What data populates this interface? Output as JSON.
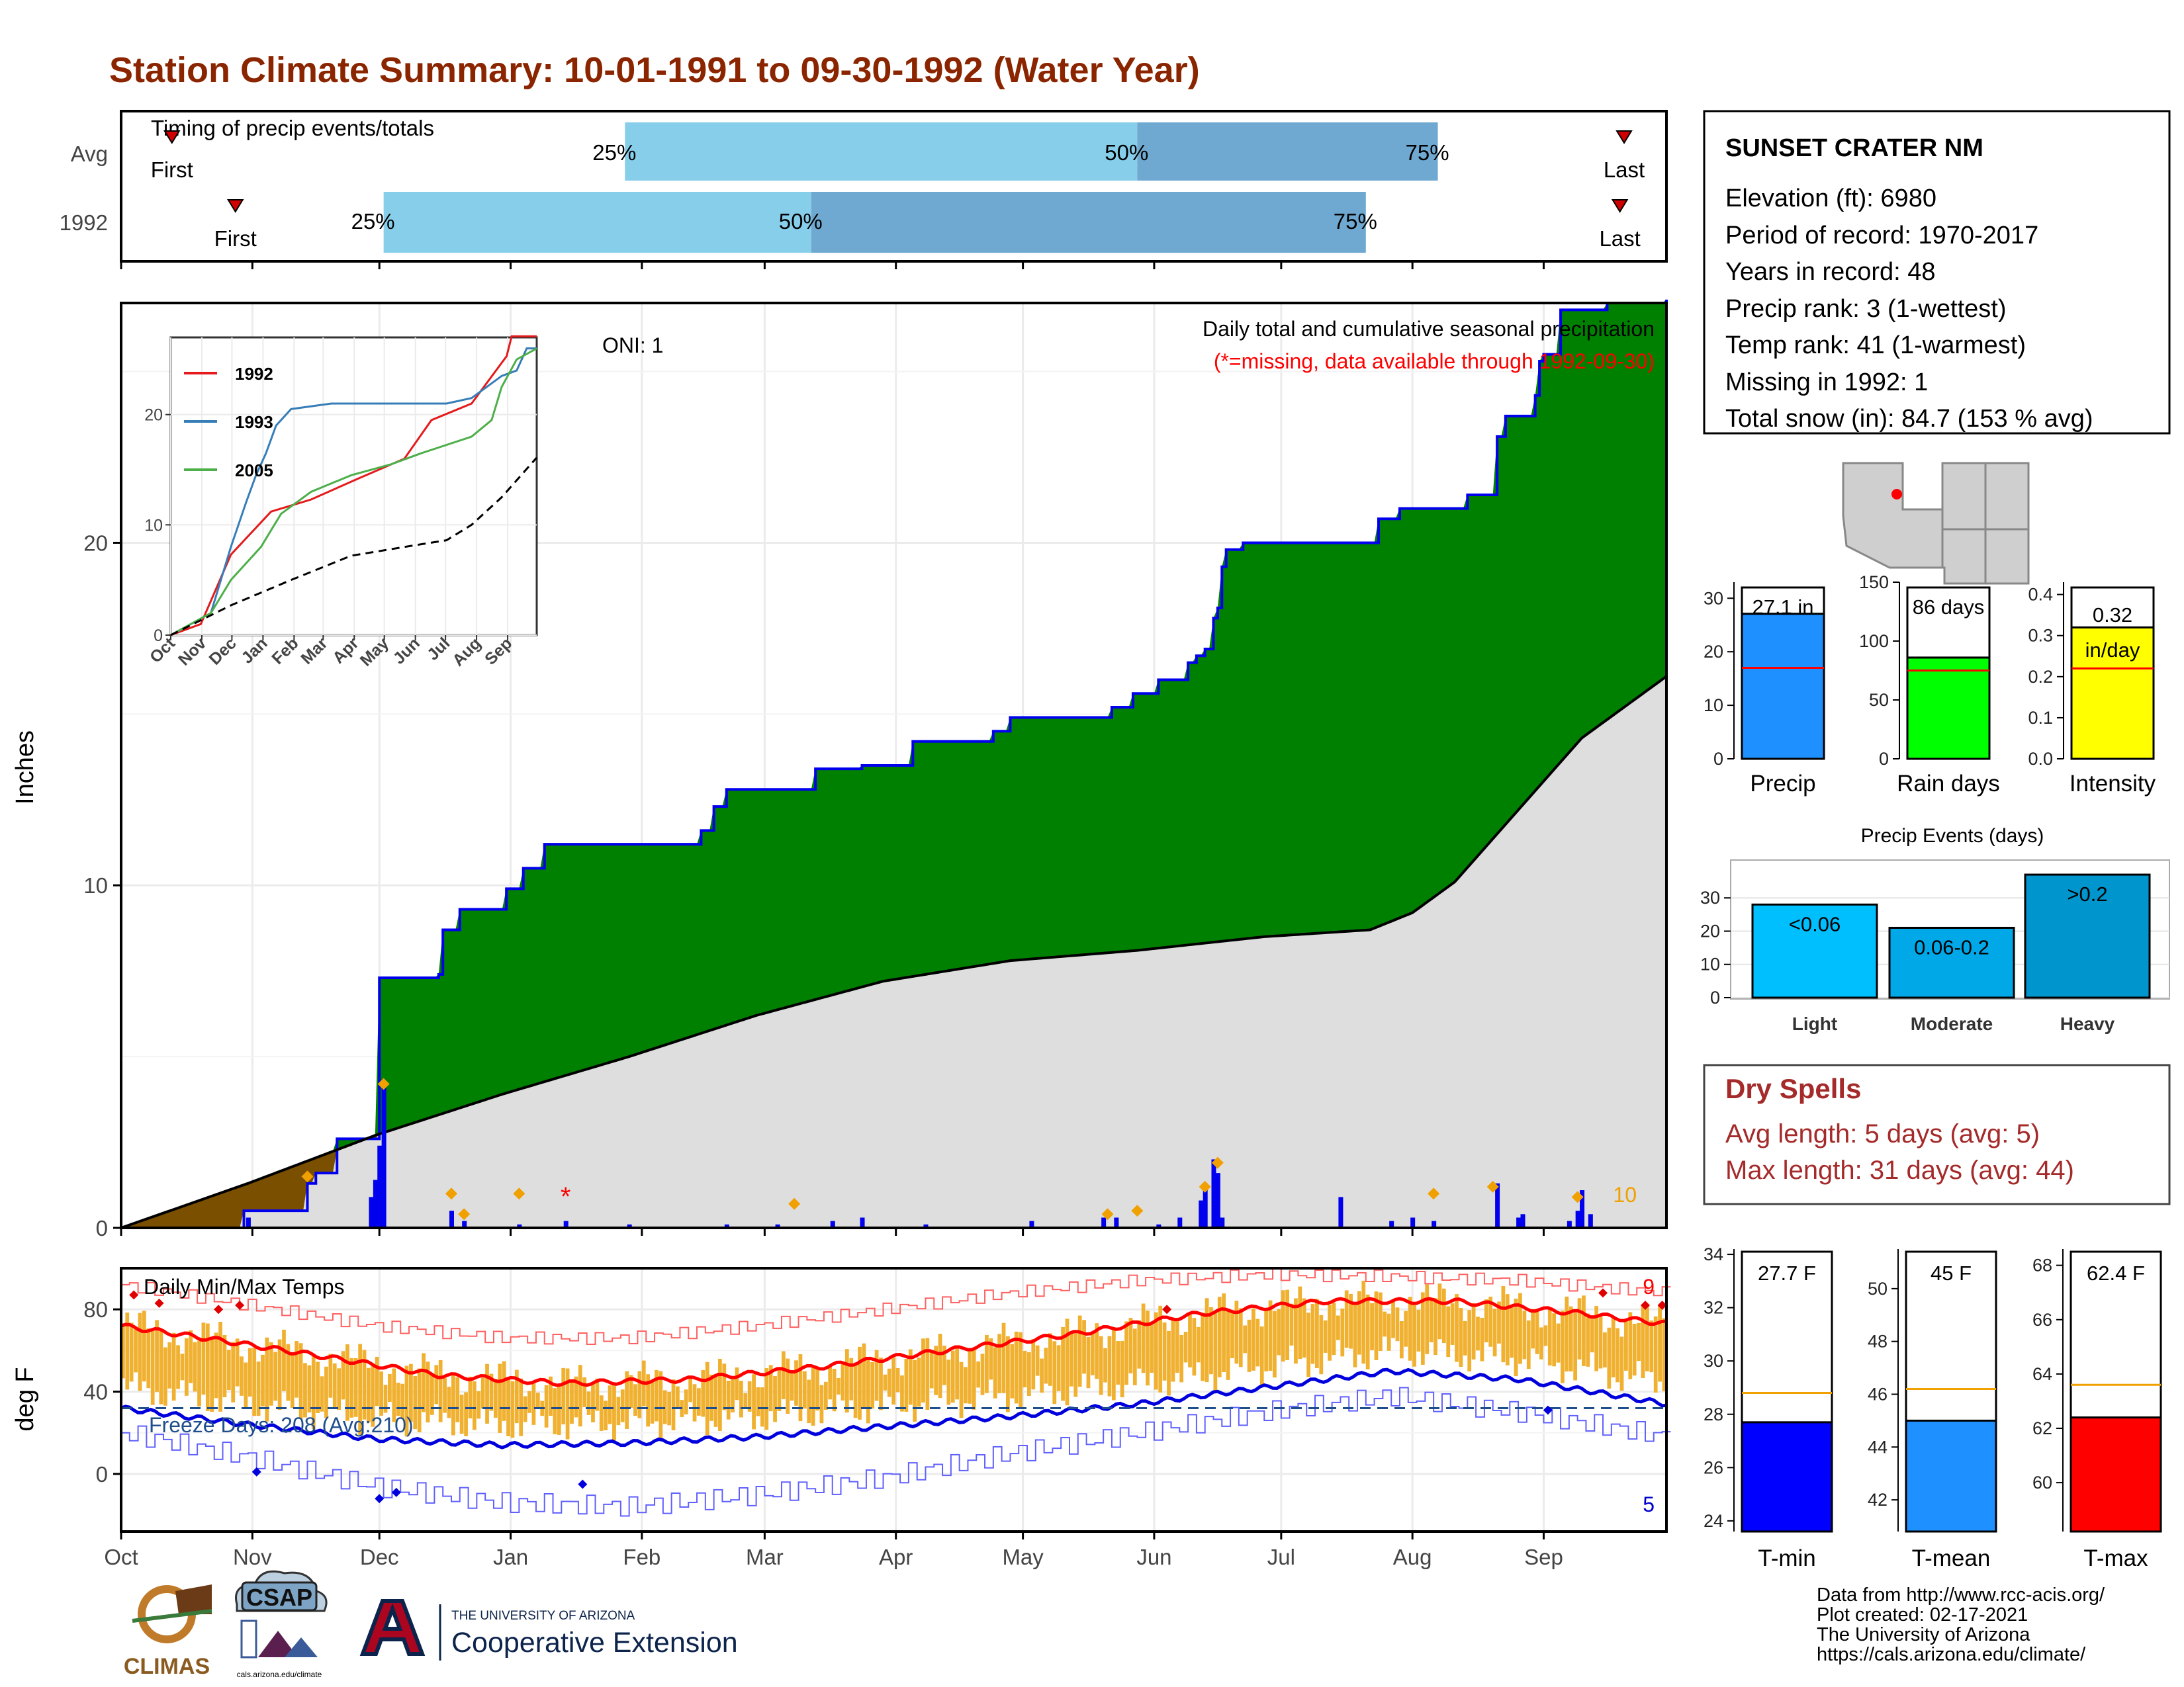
{
  "title": "Station Climate Summary: 10-01-1991 to 09-30-1992 (Water Year)",
  "months": [
    "Oct",
    "Nov",
    "Dec",
    "Jan",
    "Feb",
    "Mar",
    "Apr",
    "May",
    "Jun",
    "Jul",
    "Aug",
    "Sep"
  ],
  "colors": {
    "title": "#8b2500",
    "green": "#008000",
    "brown": "#7a4f00",
    "grey": "#dedede",
    "blue": "#0000ee",
    "orange": "#f0a000",
    "tempbar": "#f0b030",
    "red": "#ff0000",
    "light_blue": "#87ceeb",
    "mid_blue": "#6fa8d0",
    "dry": "#a52a2a"
  },
  "timing": {
    "label": "Timing of precip events/totals",
    "rows": [
      {
        "name": "Avg",
        "first_label": "First",
        "last_label": "Last",
        "first_day": 12,
        "p25_day": 119,
        "p50_day": 240,
        "p75_day": 311,
        "last_day": 355
      },
      {
        "name": "1992",
        "first_label": "First",
        "last_label": "Last",
        "first_day": 27,
        "p25_day": 62,
        "p50_day": 163,
        "p75_day": 294,
        "last_day": 354
      }
    ],
    "pct_labels": [
      "25%",
      "50%",
      "75%"
    ]
  },
  "chart_data": [
    {
      "type": "area",
      "name": "precip",
      "title": "Daily total and cumulative seasonal precipitation",
      "subtitle": "(*=missing, data available through 1992-09-30)",
      "annotation": "ONI: 1",
      "ylabel": "Inches",
      "ylim": [
        0,
        27
      ],
      "y_ticks": [
        0,
        10,
        20
      ],
      "corner_count": "10",
      "cumulative_1992": [
        [
          0,
          0
        ],
        [
          29,
          0.5
        ],
        [
          43,
          0.5
        ],
        [
          44,
          1.3
        ],
        [
          46,
          1.6
        ],
        [
          51,
          2.6
        ],
        [
          60,
          2.6
        ],
        [
          61,
          7.3
        ],
        [
          62,
          7.3
        ],
        [
          75,
          7.4
        ],
        [
          76,
          8.7
        ],
        [
          80,
          9.3
        ],
        [
          90,
          9.3
        ],
        [
          91,
          9.9
        ],
        [
          95,
          10.5
        ],
        [
          100,
          11.2
        ],
        [
          135,
          11.2
        ],
        [
          137,
          11.6
        ],
        [
          140,
          12.3
        ],
        [
          143,
          12.8
        ],
        [
          160,
          12.8
        ],
        [
          164,
          13.4
        ],
        [
          175,
          13.5
        ],
        [
          187,
          14.2
        ],
        [
          203,
          14.2
        ],
        [
          206,
          14.5
        ],
        [
          210,
          14.9
        ],
        [
          233,
          14.9
        ],
        [
          234,
          15.2
        ],
        [
          239,
          15.6
        ],
        [
          241,
          15.6
        ],
        [
          245,
          16.0
        ],
        [
          250,
          16.0
        ],
        [
          252,
          16.5
        ],
        [
          254,
          16.7
        ],
        [
          256,
          16.9
        ],
        [
          258,
          17.8
        ],
        [
          259,
          18.1
        ],
        [
          260,
          19.3
        ],
        [
          261,
          19.8
        ],
        [
          265,
          20.0
        ],
        [
          295,
          20.0
        ],
        [
          297,
          20.7
        ],
        [
          302,
          21.0
        ],
        [
          312,
          21.0
        ],
        [
          318,
          21.4
        ],
        [
          325,
          23.1
        ],
        [
          327,
          23.7
        ],
        [
          334,
          24.3
        ],
        [
          335,
          25.3
        ],
        [
          336,
          25.5
        ],
        [
          340,
          26.8
        ],
        [
          351,
          27.0
        ],
        [
          365,
          27.1
        ]
      ],
      "normal": [
        [
          0,
          0
        ],
        [
          30,
          1.3
        ],
        [
          60,
          2.7
        ],
        [
          90,
          3.9
        ],
        [
          120,
          5.0
        ],
        [
          150,
          6.2
        ],
        [
          180,
          7.2
        ],
        [
          210,
          7.8
        ],
        [
          240,
          8.1
        ],
        [
          270,
          8.5
        ],
        [
          295,
          8.7
        ],
        [
          305,
          9.2
        ],
        [
          315,
          10.1
        ],
        [
          330,
          12.2
        ],
        [
          345,
          14.3
        ],
        [
          365,
          16.1
        ]
      ],
      "daily_bars": [
        [
          30,
          0.3
        ],
        [
          59,
          0.9
        ],
        [
          60,
          1.4
        ],
        [
          61,
          2.4
        ],
        [
          62,
          4.2
        ],
        [
          78,
          0.5
        ],
        [
          81,
          0.2
        ],
        [
          94,
          0.1
        ],
        [
          105,
          0.2
        ],
        [
          120,
          0.1
        ],
        [
          143,
          0.1
        ],
        [
          155,
          0.1
        ],
        [
          168,
          0.2
        ],
        [
          175,
          0.3
        ],
        [
          190,
          0.1
        ],
        [
          215,
          0.2
        ],
        [
          232,
          0.3
        ],
        [
          235,
          0.3
        ],
        [
          245,
          0.1
        ],
        [
          250,
          0.3
        ],
        [
          255,
          0.8
        ],
        [
          256,
          1.3
        ],
        [
          258,
          2.0
        ],
        [
          259,
          1.6
        ],
        [
          260,
          0.3
        ],
        [
          288,
          0.9
        ],
        [
          300,
          0.2
        ],
        [
          305,
          0.3
        ],
        [
          310,
          0.2
        ],
        [
          325,
          1.3
        ],
        [
          330,
          0.3
        ],
        [
          331,
          0.4
        ],
        [
          342,
          0.2
        ],
        [
          344,
          0.5
        ],
        [
          345,
          1.1
        ],
        [
          347,
          0.4
        ]
      ],
      "orange_markers": [
        [
          44,
          1.5
        ],
        [
          62,
          4.2
        ],
        [
          78,
          1.0
        ],
        [
          81,
          0.4
        ],
        [
          94,
          1.0
        ],
        [
          159,
          0.7
        ],
        [
          233,
          0.4
        ],
        [
          240,
          0.5
        ],
        [
          256,
          1.2
        ],
        [
          259,
          1.9
        ],
        [
          310,
          1.0
        ],
        [
          324,
          1.2
        ],
        [
          344,
          0.9
        ]
      ],
      "missing_markers": [
        [
          105,
          1.0
        ]
      ],
      "inset": {
        "ylim": [
          0,
          27
        ],
        "y_ticks": [
          0,
          10,
          20
        ],
        "series": [
          {
            "name": "1992",
            "color": "#e41a1c",
            "values": [
              [
                0,
                0
              ],
              [
                30,
                1.0
              ],
              [
                60,
                7.3
              ],
              [
                100,
                11.2
              ],
              [
                140,
                12.3
              ],
              [
                187,
                14.2
              ],
              [
                233,
                16.0
              ],
              [
                260,
                19.5
              ],
              [
                300,
                21.0
              ],
              [
                335,
                25.3
              ],
              [
                340,
                27.1
              ],
              [
                365,
                27.1
              ]
            ]
          },
          {
            "name": "1993",
            "color": "#377eb8",
            "values": [
              [
                0,
                0
              ],
              [
                40,
                2.0
              ],
              [
                60,
                8.0
              ],
              [
                75,
                12.0
              ],
              [
                85,
                14.5
              ],
              [
                95,
                16.5
              ],
              [
                105,
                19.0
              ],
              [
                120,
                20.5
              ],
              [
                160,
                21.0
              ],
              [
                220,
                21.0
              ],
              [
                275,
                21.0
              ],
              [
                300,
                21.5
              ],
              [
                330,
                23.5
              ],
              [
                345,
                24.0
              ],
              [
                355,
                26.0
              ],
              [
                365,
                26.0
              ]
            ]
          },
          {
            "name": "2005",
            "color": "#4daf4a",
            "values": [
              [
                0,
                0
              ],
              [
                40,
                2.0
              ],
              [
                60,
                5.0
              ],
              [
                90,
                8.0
              ],
              [
                110,
                11.0
              ],
              [
                140,
                13.0
              ],
              [
                180,
                14.5
              ],
              [
                220,
                15.5
              ],
              [
                250,
                16.5
              ],
              [
                300,
                18.0
              ],
              [
                320,
                19.5
              ],
              [
                330,
                22.5
              ],
              [
                345,
                25.0
              ],
              [
                365,
                26.0
              ]
            ]
          }
        ],
        "normal": [
          [
            0,
            0
          ],
          [
            60,
            2.7
          ],
          [
            120,
            5.0
          ],
          [
            180,
            7.2
          ],
          [
            240,
            8.1
          ],
          [
            275,
            8.6
          ],
          [
            300,
            10.0
          ],
          [
            330,
            12.5
          ],
          [
            365,
            16.1
          ]
        ]
      }
    },
    {
      "type": "line",
      "name": "temps",
      "title": "Daily Min/Max Temps",
      "ylabel": "deg F",
      "ylim": [
        -28,
        100
      ],
      "y_ticks": [
        0,
        40,
        80
      ],
      "freeze_label": "Freeze Days: 208 (Avg:210)",
      "freeze_line": 32,
      "count_hot": "9",
      "count_cold": "5",
      "avg_max": [
        [
          0,
          72
        ],
        [
          20,
          66
        ],
        [
          45,
          58
        ],
        [
          75,
          48
        ],
        [
          105,
          44
        ],
        [
          135,
          46
        ],
        [
          165,
          52
        ],
        [
          195,
          60
        ],
        [
          225,
          68
        ],
        [
          255,
          78
        ],
        [
          285,
          84
        ],
        [
          315,
          84
        ],
        [
          345,
          78
        ],
        [
          365,
          73
        ]
      ],
      "avg_min": [
        [
          0,
          32
        ],
        [
          30,
          24
        ],
        [
          60,
          17
        ],
        [
          90,
          14
        ],
        [
          120,
          15
        ],
        [
          150,
          18
        ],
        [
          180,
          23
        ],
        [
          210,
          28
        ],
        [
          240,
          34
        ],
        [
          270,
          42
        ],
        [
          300,
          50
        ],
        [
          330,
          46
        ],
        [
          365,
          34
        ]
      ],
      "record_high": [
        [
          0,
          92
        ],
        [
          30,
          82
        ],
        [
          60,
          72
        ],
        [
          90,
          66
        ],
        [
          120,
          66
        ],
        [
          150,
          72
        ],
        [
          180,
          80
        ],
        [
          210,
          88
        ],
        [
          240,
          94
        ],
        [
          270,
          97
        ],
        [
          300,
          96
        ],
        [
          330,
          94
        ],
        [
          365,
          88
        ]
      ],
      "record_low": [
        [
          0,
          20
        ],
        [
          30,
          8
        ],
        [
          60,
          -6
        ],
        [
          90,
          -14
        ],
        [
          120,
          -16
        ],
        [
          150,
          -10
        ],
        [
          180,
          -2
        ],
        [
          210,
          10
        ],
        [
          240,
          20
        ],
        [
          270,
          30
        ],
        [
          300,
          38
        ],
        [
          330,
          30
        ],
        [
          365,
          18
        ]
      ]
    },
    {
      "type": "bar",
      "name": "precip_bars",
      "categories": [
        "Precip",
        "Rain days",
        "Intensity"
      ],
      "values": [
        27.1,
        86,
        0.32
      ],
      "value_labels": [
        "27.1 in",
        "86 days",
        "0.32"
      ],
      "unit_label": "in/day",
      "averages": [
        17.0,
        75,
        0.22
      ],
      "ylims": [
        [
          0,
          33
        ],
        [
          0,
          150
        ],
        [
          0,
          0.43
        ]
      ],
      "ticks": [
        [
          0,
          10,
          20,
          30
        ],
        [
          0,
          50,
          100,
          150
        ],
        [
          0.0,
          0.1,
          0.2,
          0.3,
          0.4
        ]
      ],
      "tick_labels": [
        [
          "0",
          "10",
          "20",
          "30"
        ],
        [
          "0",
          "50",
          "100",
          "150"
        ],
        [
          "0.0",
          "0.1",
          "0.2",
          "0.3",
          "0.4"
        ]
      ]
    },
    {
      "type": "bar",
      "name": "precip_events",
      "title": "Precip Events (days)",
      "categories": [
        "Light",
        "Moderate",
        "Heavy"
      ],
      "values": [
        28,
        21,
        37
      ],
      "bar_labels": [
        "<0.06",
        "0.06-0.2",
        ">0.2"
      ],
      "ylim": [
        0,
        39
      ],
      "y_ticks": [
        0,
        10,
        20,
        30
      ]
    },
    {
      "type": "bar",
      "name": "temp_bars",
      "categories": [
        "T-min",
        "T-mean",
        "T-max"
      ],
      "values": [
        27.7,
        45,
        62.4
      ],
      "value_labels": [
        "27.7 F",
        "45 F",
        "62.4 F"
      ],
      "averages": [
        28.8,
        46.2,
        63.6
      ],
      "ylims": [
        [
          23.6,
          34.2
        ],
        [
          40.8,
          51.5
        ],
        [
          58.2,
          68.6
        ]
      ],
      "ticks": [
        [
          24,
          26,
          28,
          30,
          32,
          34
        ],
        [
          42,
          44,
          46,
          48,
          50
        ],
        [
          60,
          62,
          64,
          66,
          68
        ]
      ]
    }
  ],
  "station": {
    "name": "SUNSET CRATER NM",
    "lines": [
      "Elevation (ft): 6980",
      "Period of record: 1970-2017",
      "Years in record: 48",
      "Precip rank: 3 (1-wettest)",
      "Temp rank: 41 (1-warmest)",
      "Missing in 1992: 1",
      "Total snow (in): 84.7 (153 % avg)"
    ]
  },
  "dry_spells": {
    "title": "Dry Spells",
    "lines": [
      "Avg length: 5 days (avg: 5)",
      "Max length: 31 days (avg: 44)"
    ]
  },
  "footer": {
    "lines": [
      "Data from http://www.rcc-acis.org/",
      "Plot created: 02-17-2021",
      "The University of Arizona",
      "https://cals.arizona.edu/climate/"
    ],
    "logos": {
      "climas": "CLIMAS",
      "csap": "CSAP",
      "csap_url": "cals.arizona.edu/climate",
      "ua_small": "THE UNIVERSITY OF ARIZONA",
      "ua_big": "Cooperative Extension"
    }
  }
}
